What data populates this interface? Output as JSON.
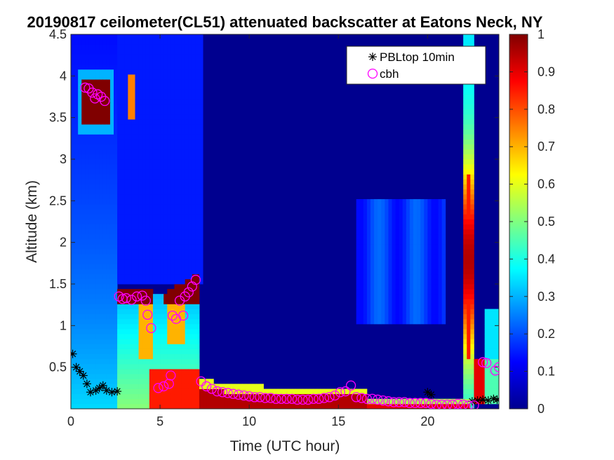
{
  "chart_data": {
    "type": "heatmap",
    "title": "20190817 ceilometer(CL51) attenuated backscatter at Eatons Neck, NY",
    "xlabel": "Time (UTC hour)",
    "ylabel": "Altitude (km)",
    "xlim": [
      0,
      24
    ],
    "ylim": [
      0,
      4.5
    ],
    "x_ticks": [
      0,
      5,
      10,
      15,
      20
    ],
    "y_ticks": [
      0.5,
      1,
      1.5,
      2,
      2.5,
      3,
      3.5,
      4,
      4.5
    ],
    "colorbar": {
      "clim": [
        0,
        1
      ],
      "ticks": [
        0,
        0.1,
        0.2,
        0.3,
        0.4,
        0.5,
        0.6,
        0.7,
        0.8,
        0.9,
        1
      ],
      "colormap": "jet"
    },
    "legend": {
      "location": "top-right",
      "entries": [
        {
          "label": "PBLtop 10min",
          "marker": "asterisk",
          "color": "#000000"
        },
        {
          "label": "cbh",
          "marker": "circle",
          "color": "#ff00ff"
        }
      ]
    },
    "series": [
      {
        "name": "PBLtop 10min",
        "marker": "asterisk",
        "color": "#000000",
        "points": [
          [
            0.1,
            0.66
          ],
          [
            0.3,
            0.5
          ],
          [
            0.5,
            0.45
          ],
          [
            0.7,
            0.4
          ],
          [
            0.9,
            0.3
          ],
          [
            1.1,
            0.2
          ],
          [
            1.4,
            0.22
          ],
          [
            1.6,
            0.25
          ],
          [
            1.8,
            0.28
          ],
          [
            2.0,
            0.22
          ],
          [
            2.3,
            0.2
          ],
          [
            2.6,
            0.21
          ],
          [
            20.0,
            0.2
          ],
          [
            20.2,
            0.17
          ],
          [
            22.5,
            0.09
          ],
          [
            22.8,
            0.1
          ],
          [
            23.1,
            0.11
          ],
          [
            23.4,
            0.1
          ],
          [
            23.7,
            0.12
          ],
          [
            23.9,
            0.11
          ]
        ]
      },
      {
        "name": "cbh",
        "marker": "circle",
        "color": "#ff00ff",
        "points": [
          [
            0.8,
            3.86
          ],
          [
            1.0,
            3.85
          ],
          [
            1.2,
            3.8
          ],
          [
            1.35,
            3.73
          ],
          [
            1.5,
            3.78
          ],
          [
            1.7,
            3.75
          ],
          [
            1.9,
            3.7
          ],
          [
            2.7,
            1.35
          ],
          [
            2.9,
            1.32
          ],
          [
            3.1,
            1.33
          ],
          [
            3.4,
            1.31
          ],
          [
            3.7,
            1.35
          ],
          [
            4.0,
            1.36
          ],
          [
            4.2,
            1.3
          ],
          [
            4.3,
            1.13
          ],
          [
            4.5,
            0.97
          ],
          [
            4.9,
            0.25
          ],
          [
            5.2,
            0.27
          ],
          [
            5.5,
            0.3
          ],
          [
            5.6,
            0.4
          ],
          [
            5.7,
            1.12
          ],
          [
            5.9,
            1.08
          ],
          [
            6.1,
            1.3
          ],
          [
            6.3,
            1.12
          ],
          [
            6.4,
            1.35
          ],
          [
            6.6,
            1.4
          ],
          [
            6.8,
            1.47
          ],
          [
            7.0,
            1.55
          ],
          [
            7.3,
            0.33
          ],
          [
            7.6,
            0.27
          ],
          [
            7.9,
            0.24
          ],
          [
            8.2,
            0.21
          ],
          [
            8.5,
            0.2
          ],
          [
            8.8,
            0.19
          ],
          [
            9.1,
            0.18
          ],
          [
            9.4,
            0.17
          ],
          [
            9.7,
            0.16
          ],
          [
            10.0,
            0.15
          ],
          [
            10.3,
            0.14
          ],
          [
            10.6,
            0.14
          ],
          [
            10.9,
            0.13
          ],
          [
            11.2,
            0.13
          ],
          [
            11.5,
            0.12
          ],
          [
            11.8,
            0.12
          ],
          [
            12.1,
            0.12
          ],
          [
            12.4,
            0.12
          ],
          [
            12.7,
            0.11
          ],
          [
            13.0,
            0.11
          ],
          [
            13.3,
            0.11
          ],
          [
            13.6,
            0.12
          ],
          [
            13.9,
            0.12
          ],
          [
            14.2,
            0.13
          ],
          [
            14.5,
            0.14
          ],
          [
            14.8,
            0.16
          ],
          [
            15.1,
            0.2
          ],
          [
            15.4,
            0.21
          ],
          [
            15.7,
            0.28
          ],
          [
            16.0,
            0.14
          ],
          [
            16.3,
            0.13
          ],
          [
            16.6,
            0.12
          ],
          [
            16.9,
            0.12
          ],
          [
            17.2,
            0.11
          ],
          [
            17.5,
            0.1
          ],
          [
            17.8,
            0.09
          ],
          [
            18.1,
            0.08
          ],
          [
            18.4,
            0.08
          ],
          [
            18.7,
            0.08
          ],
          [
            19.0,
            0.07
          ],
          [
            19.3,
            0.07
          ],
          [
            19.6,
            0.07
          ],
          [
            19.9,
            0.07
          ],
          [
            20.2,
            0.06
          ],
          [
            20.5,
            0.05
          ],
          [
            20.8,
            0.05
          ],
          [
            21.1,
            0.05
          ],
          [
            21.4,
            0.05
          ],
          [
            21.7,
            0.06
          ],
          [
            22.0,
            0.05
          ],
          [
            22.3,
            0.04
          ],
          [
            22.6,
            0.04
          ],
          [
            23.1,
            0.56
          ],
          [
            23.3,
            0.55
          ],
          [
            23.8,
            0.46
          ],
          [
            24.0,
            0.5
          ]
        ]
      }
    ]
  }
}
